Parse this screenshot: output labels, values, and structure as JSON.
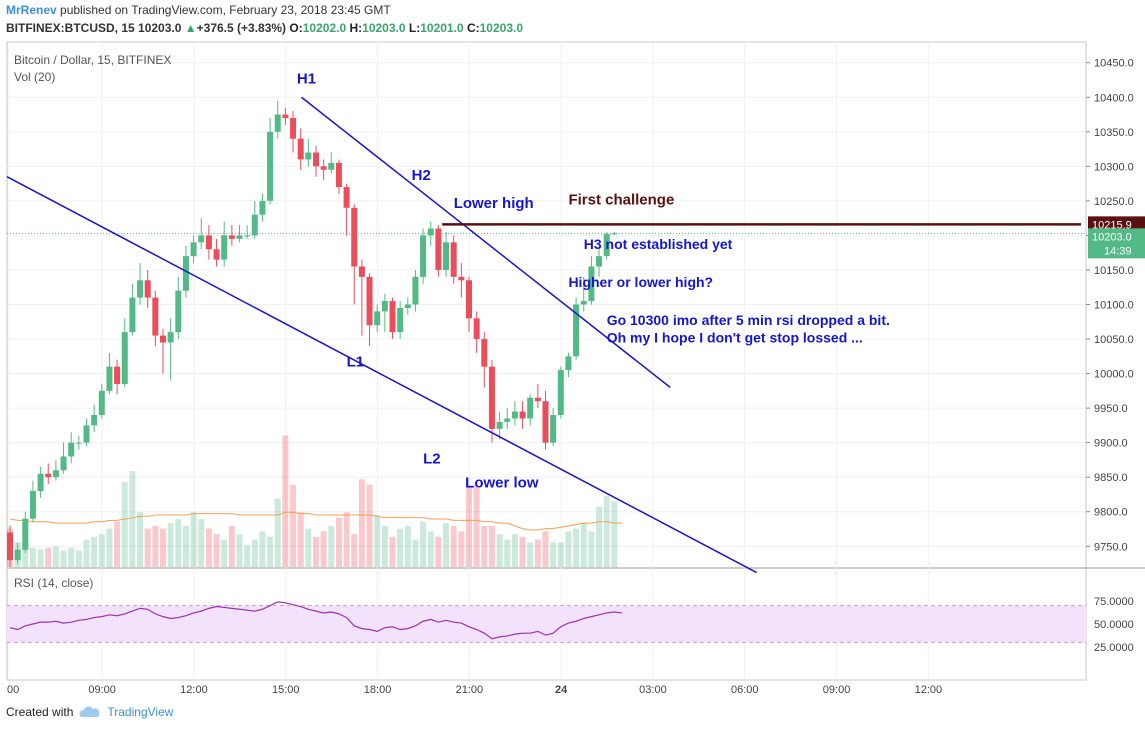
{
  "header": {
    "author": "MrRenev",
    "published": "published on TradingView.com, February 23, 2018 23:45 GMT",
    "symbol": "BITFINEX:BTCUSD, 15",
    "last": "10203.0",
    "change": "+376.5 (+3.83%)",
    "o_label": "O:",
    "o": "10202.0",
    "h_label": "H:",
    "h": "10203.0",
    "l_label": "L:",
    "l": "10201.0",
    "c_label": "C:",
    "c": "10203.0"
  },
  "footer": {
    "created_with": "Created with",
    "brand": "TradingView"
  },
  "colors": {
    "up": "#53b987",
    "down": "#eb4d5c",
    "trend": "#1515d0",
    "resistance": "#5a1010",
    "rsi": "#a030b0",
    "ma": "#f6a04e"
  },
  "chart_data": {
    "type": "candlestick",
    "title": "Bitcoin / Dollar, 15, BITFINEX",
    "volume_label": "Vol (20)",
    "rsi_label": "RSI (14, close)",
    "x_ticks": [
      "00",
      "09:00",
      "12:00",
      "15:00",
      "18:00",
      "21:00",
      "24",
      "03:00",
      "06:00",
      "09:00",
      "12:00"
    ],
    "y_ticks": [
      "9750.0",
      "9800.0",
      "9850.0",
      "9900.0",
      "9950.0",
      "10000.0",
      "10050.0",
      "10100.0",
      "10150.0",
      "10200.0",
      "10250.0",
      "10300.0",
      "10350.0",
      "10400.0",
      "10450.0"
    ],
    "ylim": [
      9720,
      10480
    ],
    "rsi_ticks": [
      "25.0000",
      "50.0000",
      "75.0000"
    ],
    "rsi_band": [
      30,
      70
    ],
    "resistance_level": "10215.9",
    "last_price_label": "10203.0",
    "countdown": "14:39",
    "candles": [
      [
        9770,
        9730,
        9780,
        9720
      ],
      [
        9730,
        9745,
        9755,
        9725
      ],
      [
        9745,
        9790,
        9800,
        9740
      ],
      [
        9790,
        9830,
        9845,
        9785
      ],
      [
        9830,
        9855,
        9865,
        9820
      ],
      [
        9855,
        9850,
        9870,
        9840
      ],
      [
        9850,
        9860,
        9875,
        9845
      ],
      [
        9860,
        9880,
        9900,
        9855
      ],
      [
        9880,
        9900,
        9915,
        9870
      ],
      [
        9900,
        9900,
        9910,
        9890
      ],
      [
        9900,
        9925,
        9935,
        9895
      ],
      [
        9925,
        9940,
        9955,
        9915
      ],
      [
        9940,
        9975,
        9985,
        9935
      ],
      [
        9975,
        10010,
        10030,
        9970
      ],
      [
        10010,
        9985,
        10020,
        9970
      ],
      [
        9985,
        10060,
        10080,
        9980
      ],
      [
        10060,
        10110,
        10130,
        10055
      ],
      [
        10110,
        10135,
        10160,
        10100
      ],
      [
        10135,
        10110,
        10150,
        10095
      ],
      [
        10110,
        10055,
        10120,
        10040
      ],
      [
        10055,
        10045,
        10065,
        10000
      ],
      [
        10045,
        10060,
        10080,
        9990
      ],
      [
        10060,
        10120,
        10140,
        10050
      ],
      [
        10120,
        10170,
        10185,
        10110
      ],
      [
        10170,
        10190,
        10200,
        10160
      ],
      [
        10190,
        10200,
        10225,
        10180
      ],
      [
        10200,
        10180,
        10215,
        10165
      ],
      [
        10180,
        10165,
        10195,
        10155
      ],
      [
        10165,
        10200,
        10220,
        10155
      ],
      [
        10200,
        10195,
        10215,
        10185
      ],
      [
        10195,
        10200,
        10215,
        10190
      ],
      [
        10200,
        10200,
        10215,
        10195
      ],
      [
        10200,
        10230,
        10250,
        10195
      ],
      [
        10230,
        10250,
        10260,
        10220
      ],
      [
        10250,
        10350,
        10370,
        10245
      ],
      [
        10350,
        10375,
        10395,
        10340
      ],
      [
        10375,
        10370,
        10385,
        10360
      ],
      [
        10370,
        10340,
        10380,
        10320
      ],
      [
        10340,
        10310,
        10355,
        10295
      ],
      [
        10310,
        10320,
        10340,
        10300
      ],
      [
        10320,
        10300,
        10330,
        10285
      ],
      [
        10300,
        10295,
        10310,
        10280
      ],
      [
        10295,
        10305,
        10320,
        10290
      ],
      [
        10305,
        10270,
        10310,
        10260
      ],
      [
        10270,
        10240,
        10275,
        10200
      ],
      [
        10240,
        10155,
        10245,
        10100
      ],
      [
        10155,
        10140,
        10165,
        10055
      ],
      [
        10140,
        10070,
        10145,
        10040
      ],
      [
        10070,
        10090,
        10100,
        10060
      ],
      [
        10090,
        10105,
        10115,
        10060
      ],
      [
        10105,
        10060,
        10110,
        10050
      ],
      [
        10060,
        10095,
        10105,
        10050
      ],
      [
        10095,
        10100,
        10110,
        10085
      ],
      [
        10100,
        10140,
        10150,
        10090
      ],
      [
        10140,
        10200,
        10210,
        10130
      ],
      [
        10200,
        10210,
        10220,
        10185
      ],
      [
        10210,
        10150,
        10215,
        10140
      ],
      [
        10150,
        10190,
        10205,
        10140
      ],
      [
        10190,
        10140,
        10200,
        10130
      ],
      [
        10140,
        10135,
        10160,
        10110
      ],
      [
        10135,
        10080,
        10140,
        10060
      ],
      [
        10080,
        10050,
        10090,
        10030
      ],
      [
        10050,
        10010,
        10060,
        9980
      ],
      [
        10010,
        9920,
        10020,
        9900
      ],
      [
        9920,
        9930,
        9945,
        9905
      ],
      [
        9930,
        9935,
        9950,
        9920
      ],
      [
        9935,
        9945,
        9960,
        9925
      ],
      [
        9945,
        9935,
        9960,
        9920
      ],
      [
        9935,
        9965,
        9970,
        9925
      ],
      [
        9965,
        9960,
        9985,
        9950
      ],
      [
        9960,
        9900,
        9975,
        9890
      ],
      [
        9900,
        9940,
        9950,
        9895
      ],
      [
        9940,
        10005,
        10010,
        9935
      ],
      [
        10005,
        10025,
        10030,
        9995
      ],
      [
        10025,
        10100,
        10110,
        10020
      ],
      [
        10100,
        10105,
        10140,
        10090
      ],
      [
        10105,
        10155,
        10170,
        10100
      ],
      [
        10155,
        10170,
        10180,
        10140
      ],
      [
        10170,
        10202,
        10205,
        10165
      ],
      [
        10202,
        10203,
        10205,
        10201
      ]
    ],
    "volumes": [
      28,
      18,
      16,
      14,
      13,
      14,
      15,
      12,
      14,
      12,
      20,
      22,
      24,
      28,
      33,
      62,
      70,
      40,
      28,
      30,
      28,
      32,
      35,
      30,
      40,
      35,
      28,
      24,
      20,
      30,
      24,
      16,
      20,
      26,
      22,
      50,
      96,
      60,
      40,
      28,
      22,
      26,
      30,
      36,
      40,
      24,
      64,
      60,
      38,
      30,
      22,
      28,
      30,
      20,
      33,
      26,
      22,
      32,
      30,
      26,
      58,
      60,
      30,
      30,
      24,
      20,
      24,
      22,
      18,
      20,
      26,
      18,
      18,
      26,
      28,
      32,
      26,
      44,
      52,
      48,
      18
    ],
    "volume_ma": [
      35,
      34,
      34,
      33,
      33,
      33,
      32,
      32,
      32,
      32,
      32,
      33,
      33,
      34,
      34,
      35,
      36,
      37,
      37,
      38,
      38,
      38,
      38,
      38,
      39,
      39,
      39,
      39,
      39,
      39,
      38,
      38,
      38,
      38,
      38,
      38,
      40,
      40,
      39,
      39,
      38,
      38,
      38,
      38,
      38,
      38,
      38,
      38,
      37,
      36,
      36,
      36,
      36,
      36,
      36,
      35,
      35,
      35,
      34,
      34,
      34,
      34,
      33,
      33,
      32,
      32,
      30,
      28,
      27,
      27,
      28,
      28,
      29,
      30,
      31,
      32,
      32,
      33,
      33,
      32,
      32
    ],
    "rsi": [
      46,
      44,
      48,
      50,
      52,
      52,
      53,
      51,
      52,
      54,
      55,
      57,
      58,
      60,
      59,
      61,
      64,
      67,
      66,
      61,
      58,
      56,
      57,
      59,
      62,
      64,
      67,
      69,
      68,
      67,
      66,
      65,
      64,
      66,
      70,
      74,
      73,
      71,
      69,
      66,
      64,
      62,
      63,
      61,
      57,
      48,
      45,
      44,
      42,
      46,
      47,
      44,
      45,
      48,
      53,
      55,
      52,
      54,
      52,
      51,
      47,
      44,
      40,
      34,
      36,
      37,
      39,
      40,
      40,
      42,
      38,
      40,
      47,
      51,
      53,
      56,
      58,
      60,
      62,
      63,
      62
    ],
    "annotations": [
      {
        "text": "H1",
        "price": 10420,
        "bar": 37.5
      },
      {
        "text": "H2",
        "price": 10280,
        "bar": 52.5
      },
      {
        "text": "Lower high",
        "price": 10240,
        "bar": 58
      },
      {
        "text": "L1",
        "price": 10010,
        "bar": 44
      },
      {
        "text": "L2",
        "price": 9870,
        "bar": 54
      },
      {
        "text": "Lower low",
        "price": 9835,
        "bar": 59.5
      },
      {
        "text": "First challenge",
        "price": 10245,
        "bar": 73,
        "dark": true
      },
      {
        "text": "H3 not established yet",
        "price": 10180,
        "bar": 75
      },
      {
        "text": "Higher or lower high?",
        "price": 10125,
        "bar": 73
      },
      {
        "text": "Go 10300 imo after 5 min rsi dropped a bit.",
        "price": 10070,
        "bar": 78
      },
      {
        "text": "Oh my I hope I don't get stop lossed ...",
        "price": 10045,
        "bar": 78
      }
    ]
  }
}
